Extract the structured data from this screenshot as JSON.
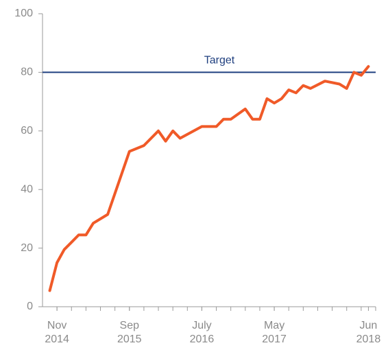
{
  "chart_data": {
    "type": "line",
    "x": [
      "2014-10",
      "2014-11",
      "2014-12",
      "2015-01",
      "2015-02",
      "2015-03",
      "2015-04",
      "2015-06",
      "2015-09",
      "2015-11",
      "2016-01",
      "2016-02",
      "2016-03",
      "2016-04",
      "2016-07",
      "2016-09",
      "2016-10",
      "2016-11",
      "2017-01",
      "2017-02",
      "2017-03",
      "2017-04",
      "2017-05",
      "2017-06",
      "2017-07",
      "2017-08",
      "2017-09",
      "2017-10",
      "2017-12",
      "2018-02",
      "2018-03",
      "2018-04",
      "2018-05",
      "2018-06"
    ],
    "series": [
      {
        "color": "#f05a28",
        "values": [
          5.5,
          15,
          19.5,
          22,
          24.5,
          24.5,
          28.5,
          31.5,
          53,
          55,
          60,
          56.5,
          60,
          57.5,
          61.5,
          61.5,
          64,
          64,
          67.5,
          64,
          64,
          71,
          69.5,
          71,
          74,
          73,
          75.5,
          74.5,
          77,
          76,
          74.5,
          80,
          79,
          82
        ]
      }
    ],
    "xlim": [
      "2014-09",
      "2018-07"
    ],
    "xticks": [
      {
        "value": "2014-11",
        "label": [
          "Nov",
          "2014"
        ]
      },
      {
        "value": "2015-09",
        "label": [
          "Sep",
          "2015"
        ]
      },
      {
        "value": "2016-07",
        "label": [
          "July",
          "2016"
        ]
      },
      {
        "value": "2017-05",
        "label": [
          "May",
          "2017"
        ]
      },
      {
        "value": "2018-06",
        "label": [
          "Jun",
          "2018"
        ]
      }
    ],
    "ylim": [
      0,
      100
    ],
    "yticks": [
      0,
      20,
      40,
      60,
      80,
      100
    ],
    "target": {
      "label": "Target",
      "value": 80,
      "color": "#1f3f7f"
    }
  }
}
